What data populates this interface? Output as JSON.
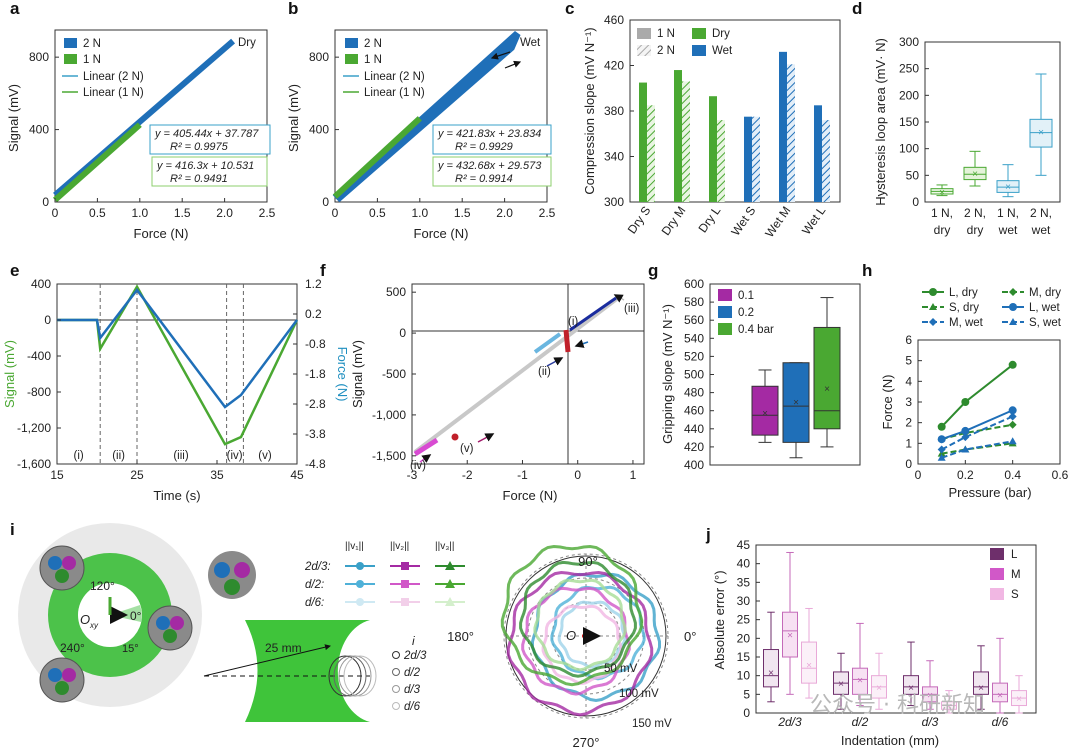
{
  "colors": {
    "blue": "#1f6fb8",
    "green": "#4aa832",
    "darkgreen": "#2e8b2e",
    "purple": "#a42aa3",
    "magenta": "#d158c8",
    "pink": "#f1b7e3",
    "darkpurple": "#6e2f6b",
    "lightblue": "#4fb1d8",
    "teal": "#3aa0c8"
  },
  "panel_labels": {
    "a": "a",
    "b": "b",
    "c": "c",
    "d": "d",
    "e": "e",
    "f": "f",
    "g": "g",
    "h": "h",
    "i": "i",
    "j": "j"
  },
  "chart_data": [
    {
      "id": "a",
      "type": "line",
      "annotation": "Dry",
      "series": [
        {
          "name": "2 N",
          "x": [
            0,
            2.1
          ],
          "y": [
            38,
            889
          ]
        },
        {
          "name": "1 N",
          "x": [
            0,
            1.0
          ],
          "y": [
            11,
            427
          ]
        },
        {
          "name": "Linear (2 N)"
        },
        {
          "name": "Linear (1 N)"
        }
      ],
      "fits": [
        {
          "eq": "y = 405.44x + 37.787",
          "r2": "R² = 0.9975"
        },
        {
          "eq": "y = 416.3x + 10.531",
          "r2": "R² = 0.9491"
        }
      ],
      "xlabel": "Force (N)",
      "ylabel": "Signal (mV)",
      "xticks": [
        "0",
        "0.5",
        "1.0",
        "1.5",
        "2.0",
        "2.5"
      ],
      "yticks": [
        "0",
        "400",
        "800"
      ],
      "xlim": [
        0,
        2.5
      ],
      "ylim": [
        0,
        950
      ]
    },
    {
      "id": "b",
      "type": "line",
      "annotation": "Wet",
      "series": [
        {
          "name": "2 N",
          "x": [
            0,
            2.15
          ],
          "y": [
            24,
            930
          ]
        },
        {
          "name": "1 N",
          "x": [
            0,
            1.0
          ],
          "y": [
            30,
            462
          ]
        },
        {
          "name": "Linear (2 N)"
        },
        {
          "name": "Linear (1 N)"
        }
      ],
      "fits": [
        {
          "eq": "y = 421.83x + 23.834",
          "r2": "R² = 0.9929"
        },
        {
          "eq": "y = 432.68x + 29.573",
          "r2": "R² = 0.9914"
        }
      ],
      "xlabel": "Force (N)",
      "ylabel": "Signal (mV)",
      "xticks": [
        "0",
        "0.5",
        "1.0",
        "1.5",
        "2.0",
        "2.5"
      ],
      "yticks": [
        "0",
        "400",
        "800"
      ],
      "xlim": [
        0,
        2.5
      ],
      "ylim": [
        0,
        950
      ]
    },
    {
      "id": "c",
      "type": "bar",
      "categories": [
        "Dry S",
        "Dry M",
        "Dry L",
        "Wet S",
        "Wet M",
        "Wet L"
      ],
      "series": [
        {
          "name": "1 N",
          "values": [
            405,
            416,
            393,
            375,
            432,
            385
          ]
        },
        {
          "name": "2 N",
          "values": [
            385,
            406,
            372,
            375,
            421,
            372
          ]
        }
      ],
      "legend": [
        "1 N",
        "2 N",
        "Dry",
        "Wet"
      ],
      "ylabel": "Compression slope (mV N⁻¹)",
      "yticks": [
        "300",
        "340",
        "380",
        "420",
        "460"
      ],
      "ylim": [
        300,
        460
      ]
    },
    {
      "id": "d",
      "type": "box",
      "categories": [
        "1 N, dry",
        "2 N, dry",
        "1 N, wet",
        "2 N, wet"
      ],
      "boxes": [
        {
          "min": 12,
          "q1": 15,
          "median": 20,
          "q3": 25,
          "max": 32,
          "mean": 20
        },
        {
          "min": 30,
          "q1": 42,
          "median": 52,
          "q3": 65,
          "max": 95,
          "mean": 54
        },
        {
          "min": 10,
          "q1": 18,
          "median": 28,
          "q3": 40,
          "max": 70,
          "mean": 30
        },
        {
          "min": 50,
          "q1": 103,
          "median": 130,
          "q3": 155,
          "max": 240,
          "mean": 132
        }
      ],
      "ylabel": "Hysteresis loop area (mV· N)",
      "yticks": [
        "0",
        "50",
        "100",
        "150",
        "200",
        "250",
        "300"
      ],
      "ylim": [
        0,
        300
      ]
    },
    {
      "id": "e",
      "type": "line",
      "x": [
        15,
        20,
        20.4,
        25,
        36,
        38,
        45
      ],
      "series": [
        {
          "name": "Signal",
          "values": [
            0,
            0,
            -320,
            370,
            -1380,
            -1300,
            0
          ]
        },
        {
          "name": "Force",
          "values": [
            0,
            0,
            -0.6,
            1.0,
            -2.9,
            -2.5,
            0
          ]
        }
      ],
      "regions": [
        "(i)",
        "(ii)",
        "(iii)",
        "(iv)",
        "(v)"
      ],
      "xlabel": "Time (s)",
      "ylabel": "Signal (mV)",
      "y2label": "Force (N)",
      "xticks": [
        "15",
        "25",
        "35",
        "45"
      ],
      "yticks": [
        "400",
        "0",
        "-400",
        "-800",
        "-1,200",
        "-1,600"
      ],
      "y2ticks": [
        "1.2",
        "0.2",
        "-0.8",
        "-1.8",
        "-2.8",
        "-3.8",
        "-4.8"
      ]
    },
    {
      "id": "f",
      "type": "scatter",
      "labels": [
        "(i)",
        "(ii)",
        "(iii)",
        "(iv)",
        "(v)"
      ],
      "xlabel": "Force (N)",
      "ylabel": "Signal (mV)",
      "xticks": [
        "-3",
        "-2",
        "-1",
        "0",
        "1"
      ],
      "yticks": [
        "500",
        "0",
        "-500",
        "-1,000",
        "-1,500"
      ],
      "xlim": [
        -3,
        1.2
      ],
      "ylim": [
        -1600,
        600
      ]
    },
    {
      "id": "g",
      "type": "box",
      "categories": [
        "0.1",
        "0.2",
        "0.4 bar"
      ],
      "boxes": [
        {
          "min": 425,
          "q1": 433,
          "median": 455,
          "q3": 487,
          "max": 505,
          "mean": 458
        },
        {
          "min": 408,
          "q1": 425,
          "median": 465,
          "q3": 513,
          "max": 513,
          "mean": 470
        },
        {
          "min": 420,
          "q1": 440,
          "median": 460,
          "q3": 552,
          "max": 585,
          "mean": 485
        }
      ],
      "legend": [
        "0.1",
        "0.2",
        "0.4 bar"
      ],
      "ylabel": "Gripping slope (mV N⁻¹)",
      "yticks": [
        "400",
        "420",
        "440",
        "460",
        "480",
        "500",
        "520",
        "540",
        "560",
        "580",
        "600"
      ],
      "ylim": [
        400,
        600
      ]
    },
    {
      "id": "h",
      "type": "line",
      "x": [
        0.1,
        0.2,
        0.4
      ],
      "series": [
        {
          "name": "L, dry",
          "values": [
            1.8,
            3.0,
            4.8
          ]
        },
        {
          "name": "M, dry",
          "values": [
            1.2,
            1.5,
            1.9
          ]
        },
        {
          "name": "S, dry",
          "values": [
            0.5,
            0.7,
            1.0
          ]
        },
        {
          "name": "L, wet",
          "values": [
            1.2,
            1.6,
            2.6
          ]
        },
        {
          "name": "M, wet",
          "values": [
            0.7,
            1.3,
            2.3
          ]
        },
        {
          "name": "S, wet",
          "values": [
            0.3,
            0.7,
            1.1
          ]
        }
      ],
      "xlabel": "Pressure (bar)",
      "ylabel": "Force (N)",
      "xticks": [
        "0",
        "0.2",
        "0.4",
        "0.6"
      ],
      "yticks": [
        "0",
        "1",
        "2",
        "3",
        "4",
        "5",
        "6"
      ],
      "xlim": [
        0,
        0.6
      ],
      "ylim": [
        0,
        6
      ]
    },
    {
      "id": "j",
      "type": "box",
      "categories": [
        "2d/3",
        "d/2",
        "d/3",
        "d/6"
      ],
      "legend": [
        "L",
        "M",
        "S"
      ],
      "groups": [
        [
          {
            "min": 3,
            "q1": 7,
            "median": 10,
            "q3": 17,
            "max": 27,
            "mean": 11
          },
          {
            "min": 5,
            "q1": 15,
            "median": 22,
            "q3": 27,
            "max": 43,
            "mean": 21
          },
          {
            "min": 4,
            "q1": 8,
            "median": 12,
            "q3": 19,
            "max": 28,
            "mean": 13
          }
        ],
        [
          {
            "min": 1,
            "q1": 5,
            "median": 8,
            "q3": 11,
            "max": 16,
            "mean": 8
          },
          {
            "min": 2,
            "q1": 5,
            "median": 9,
            "q3": 12,
            "max": 24,
            "mean": 9
          },
          {
            "min": 1,
            "q1": 4,
            "median": 7,
            "q3": 10,
            "max": 16,
            "mean": 7
          }
        ],
        [
          {
            "min": 2,
            "q1": 5,
            "median": 7,
            "q3": 10,
            "max": 19,
            "mean": 7
          },
          {
            "min": 1,
            "q1": 3,
            "median": 5,
            "q3": 7,
            "max": 14,
            "mean": 5
          },
          {
            "min": 0,
            "q1": 1,
            "median": 2,
            "q3": 3,
            "max": 6,
            "mean": 2
          }
        ],
        [
          {
            "min": 1,
            "q1": 5,
            "median": 7,
            "q3": 11,
            "max": 18,
            "mean": 7
          },
          {
            "min": 0,
            "q1": 3,
            "median": 5,
            "q3": 8,
            "max": 20,
            "mean": 5
          },
          {
            "min": 0,
            "q1": 2,
            "median": 4,
            "q3": 6,
            "max": 10,
            "mean": 4
          }
        ]
      ],
      "xlabel": "Indentation (mm)",
      "ylabel": "Absolute error (°)",
      "yticks": [
        "0",
        "5",
        "10",
        "15",
        "20",
        "25",
        "30",
        "35",
        "40",
        "45"
      ],
      "ylim": [
        0,
        45
      ]
    }
  ],
  "panel_i": {
    "angles": [
      "120°",
      "0°",
      "240°",
      "15°"
    ],
    "center": "O",
    "center_sub": "xy",
    "legend_headers": [
      "||v₁||",
      "||v₂||",
      "||v₃||"
    ],
    "legend_rows": [
      "2d/3:",
      "d/2:",
      "d/6:"
    ],
    "radius": "25 mm",
    "i_title": "i",
    "i_levels": [
      "2d/3",
      "d/2",
      "d/3",
      "d/6"
    ],
    "polar_angles": [
      "90°",
      "180°",
      "0°",
      "270°"
    ],
    "polar_rings": [
      "50 mV",
      "100 mV",
      "150 mV"
    ]
  },
  "watermark": "公众号 · 科研新知"
}
